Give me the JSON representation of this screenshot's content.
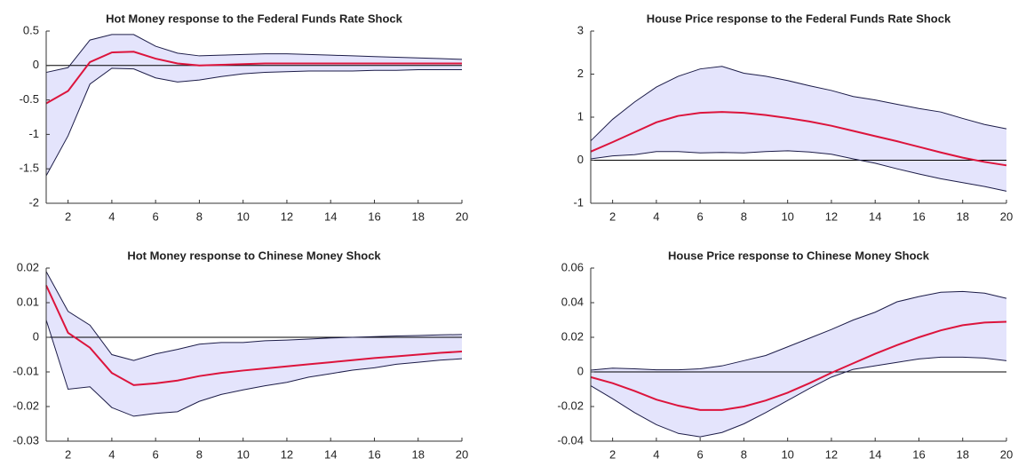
{
  "chart_data": [
    {
      "type": "line",
      "title": "Hot Money response to the Federal Funds Rate Shock",
      "x": [
        1,
        2,
        3,
        4,
        5,
        6,
        7,
        8,
        9,
        10,
        11,
        12,
        13,
        14,
        15,
        16,
        17,
        18,
        19,
        20
      ],
      "series": [
        {
          "color": "#dc143c",
          "values": [
            -0.55,
            -0.37,
            0.05,
            0.19,
            0.2,
            0.1,
            0.03,
            0.0,
            0.01,
            0.02,
            0.03,
            0.03,
            0.03,
            0.03,
            0.03,
            0.03,
            0.03,
            0.03,
            0.03,
            0.03
          ]
        }
      ],
      "band": {
        "fill": "#e4e4fc",
        "edge_color": "#1c1c48",
        "upper": [
          -0.1,
          -0.03,
          0.37,
          0.45,
          0.45,
          0.28,
          0.18,
          0.14,
          0.15,
          0.16,
          0.17,
          0.17,
          0.16,
          0.15,
          0.14,
          0.13,
          0.12,
          0.11,
          0.1,
          0.09
        ],
        "lower": [
          -1.6,
          -1.02,
          -0.27,
          -0.04,
          -0.05,
          -0.18,
          -0.24,
          -0.21,
          -0.16,
          -0.12,
          -0.1,
          -0.09,
          -0.08,
          -0.08,
          -0.08,
          -0.07,
          -0.07,
          -0.06,
          -0.06,
          -0.06
        ]
      },
      "reference_line": 0,
      "xlim": [
        1,
        20
      ],
      "xticks": [
        2,
        4,
        6,
        8,
        10,
        12,
        14,
        16,
        18,
        20
      ],
      "ylim": [
        -2,
        0.5
      ],
      "yticks": [
        -2,
        -1.5,
        -1,
        -0.5,
        0,
        0.5
      ]
    },
    {
      "type": "line",
      "title": "House Price response to the Federal Funds Rate Shock",
      "x": [
        1,
        2,
        3,
        4,
        5,
        6,
        7,
        8,
        9,
        10,
        11,
        12,
        13,
        14,
        15,
        16,
        17,
        18,
        19,
        20
      ],
      "series": [
        {
          "color": "#dc143c",
          "values": [
            0.2,
            0.42,
            0.65,
            0.88,
            1.03,
            1.1,
            1.12,
            1.1,
            1.05,
            0.98,
            0.9,
            0.8,
            0.68,
            0.56,
            0.44,
            0.31,
            0.18,
            0.06,
            -0.04,
            -0.12
          ]
        }
      ],
      "band": {
        "fill": "#e4e4fc",
        "edge_color": "#1c1c48",
        "upper": [
          0.45,
          0.95,
          1.35,
          1.7,
          1.95,
          2.12,
          2.18,
          2.02,
          1.95,
          1.85,
          1.73,
          1.62,
          1.48,
          1.4,
          1.3,
          1.2,
          1.12,
          0.97,
          0.83,
          0.73
        ],
        "lower": [
          0.03,
          0.1,
          0.13,
          0.2,
          0.2,
          0.17,
          0.18,
          0.17,
          0.2,
          0.22,
          0.19,
          0.14,
          0.03,
          -0.07,
          -0.2,
          -0.32,
          -0.43,
          -0.52,
          -0.61,
          -0.72
        ]
      },
      "reference_line": 0,
      "xlim": [
        1,
        20
      ],
      "xticks": [
        2,
        4,
        6,
        8,
        10,
        12,
        14,
        16,
        18,
        20
      ],
      "ylim": [
        -1,
        3
      ],
      "yticks": [
        -1,
        0,
        1,
        2,
        3
      ]
    },
    {
      "type": "line",
      "title": "Hot Money response to Chinese Money Shock",
      "x": [
        1,
        2,
        3,
        4,
        5,
        6,
        7,
        8,
        9,
        10,
        11,
        12,
        13,
        14,
        15,
        16,
        17,
        18,
        19,
        20
      ],
      "series": [
        {
          "color": "#dc143c",
          "values": [
            0.015,
            0.0013,
            -0.003,
            -0.0103,
            -0.0138,
            -0.0133,
            -0.0125,
            -0.0112,
            -0.0103,
            -0.0096,
            -0.009,
            -0.0084,
            -0.0078,
            -0.0072,
            -0.0066,
            -0.006,
            -0.0055,
            -0.005,
            -0.0045,
            -0.0041
          ]
        }
      ],
      "band": {
        "fill": "#e4e4fc",
        "edge_color": "#1c1c48",
        "upper": [
          0.019,
          0.0075,
          0.0035,
          -0.005,
          -0.0067,
          -0.0048,
          -0.0035,
          -0.002,
          -0.0015,
          -0.0015,
          -0.001,
          -0.0008,
          -0.0005,
          -0.0002,
          0.0,
          0.0002,
          0.0004,
          0.0005,
          0.0007,
          0.0008
        ],
        "lower": [
          0.005,
          -0.015,
          -0.0143,
          -0.0203,
          -0.0228,
          -0.022,
          -0.0215,
          -0.0185,
          -0.0165,
          -0.0152,
          -0.014,
          -0.013,
          -0.0115,
          -0.0105,
          -0.0095,
          -0.0088,
          -0.0078,
          -0.0072,
          -0.0066,
          -0.0062
        ]
      },
      "reference_line": 0,
      "xlim": [
        1,
        20
      ],
      "xticks": [
        2,
        4,
        6,
        8,
        10,
        12,
        14,
        16,
        18,
        20
      ],
      "ylim": [
        -0.03,
        0.02
      ],
      "yticks": [
        -0.03,
        -0.02,
        -0.01,
        0,
        0.01,
        0.02
      ]
    },
    {
      "type": "line",
      "title": "House Price response to Chinese Money Shock",
      "x": [
        1,
        2,
        3,
        4,
        5,
        6,
        7,
        8,
        9,
        10,
        11,
        12,
        13,
        14,
        15,
        16,
        17,
        18,
        19,
        20
      ],
      "series": [
        {
          "color": "#dc143c",
          "values": [
            -0.003,
            -0.0065,
            -0.011,
            -0.016,
            -0.0195,
            -0.022,
            -0.022,
            -0.02,
            -0.0165,
            -0.012,
            -0.0065,
            -0.0005,
            0.005,
            0.0105,
            0.0155,
            0.02,
            0.024,
            0.027,
            0.0285,
            0.029
          ]
        }
      ],
      "band": {
        "fill": "#e4e4fc",
        "edge_color": "#1c1c48",
        "upper": [
          0.001,
          0.0022,
          0.0018,
          0.0012,
          0.0012,
          0.0018,
          0.0035,
          0.0065,
          0.0095,
          0.0145,
          0.0195,
          0.0245,
          0.03,
          0.0345,
          0.0405,
          0.0435,
          0.046,
          0.0465,
          0.0455,
          0.0425
        ],
        "lower": [
          -0.008,
          -0.0155,
          -0.0235,
          -0.0305,
          -0.0355,
          -0.0375,
          -0.035,
          -0.03,
          -0.0235,
          -0.0165,
          -0.0095,
          -0.003,
          0.0015,
          0.0035,
          0.0055,
          0.0075,
          0.0085,
          0.0085,
          0.008,
          0.0065
        ]
      },
      "reference_line": 0,
      "xlim": [
        1,
        20
      ],
      "xticks": [
        2,
        4,
        6,
        8,
        10,
        12,
        14,
        16,
        18,
        20
      ],
      "ylim": [
        -0.04,
        0.06
      ],
      "yticks": [
        -0.04,
        -0.02,
        0,
        0.02,
        0.04,
        0.06
      ]
    }
  ]
}
